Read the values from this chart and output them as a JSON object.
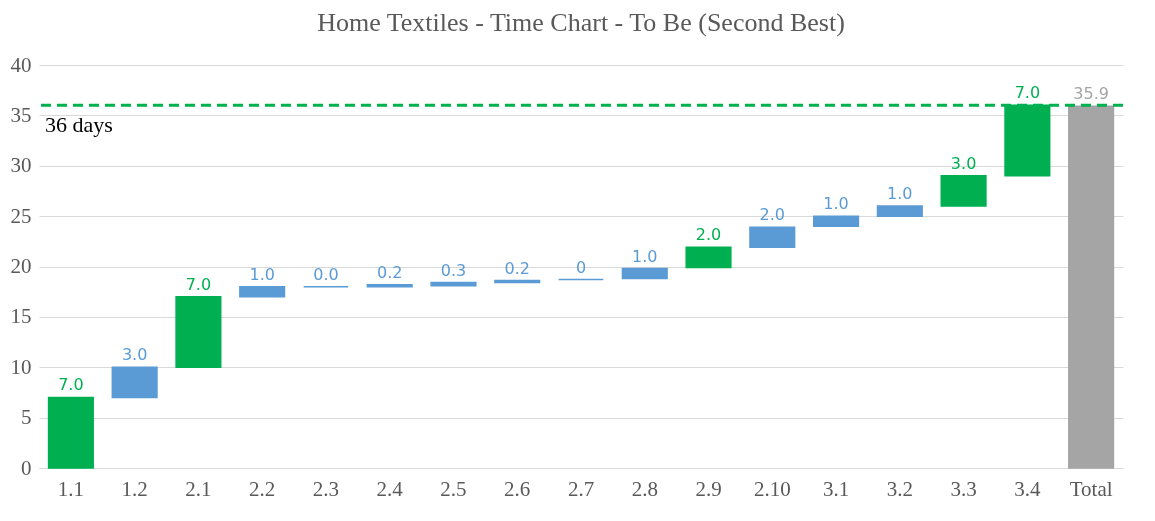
{
  "chart_data": {
    "type": "bar",
    "title": "Home Textiles - Time Chart - To Be (Second Best)",
    "categories": [
      "1.1",
      "1.2",
      "2.1",
      "2.2",
      "2.3",
      "2.4",
      "2.5",
      "2.6",
      "2.7",
      "2.8",
      "2.9",
      "2.10",
      "3.1",
      "3.2",
      "3.3",
      "3.4",
      "Total"
    ],
    "values": [
      7.0,
      3.0,
      7.0,
      1.0,
      0.0,
      0.2,
      0.3,
      0.2,
      0,
      1.0,
      2.0,
      2.0,
      1.0,
      1.0,
      3.0,
      7.0,
      35.9
    ],
    "base": [
      0,
      7,
      10,
      17,
      18,
      18,
      18.1,
      18.4,
      18.7,
      18.8,
      19.9,
      21.9,
      24.0,
      25.0,
      26.0,
      29.0,
      0
    ],
    "colors": [
      "#00b050",
      "#5b9bd5",
      "#00b050",
      "#5b9bd5",
      "#5b9bd5",
      "#5b9bd5",
      "#5b9bd5",
      "#5b9bd5",
      "#5b9bd5",
      "#5b9bd5",
      "#00b050",
      "#5b9bd5",
      "#5b9bd5",
      "#5b9bd5",
      "#00b050",
      "#00b050",
      "#a5a5a5"
    ],
    "value_labels": [
      "7.0",
      "3.0",
      "7.0",
      "1.0",
      "0.0",
      "0.2",
      "0.3",
      "0.2",
      "0",
      "1.0",
      "2.0",
      "2.0",
      "1.0",
      "1.0",
      "3.0",
      "7.0",
      "35.9"
    ],
    "ylim": [
      0,
      40
    ],
    "yticks": [
      0,
      5,
      10,
      15,
      20,
      25,
      30,
      35,
      40
    ],
    "grid": "y",
    "ref_lines": [
      {
        "axis": "y",
        "value": 36,
        "label": "36 days",
        "color": "#00b050",
        "line_style": "dashed"
      }
    ]
  }
}
